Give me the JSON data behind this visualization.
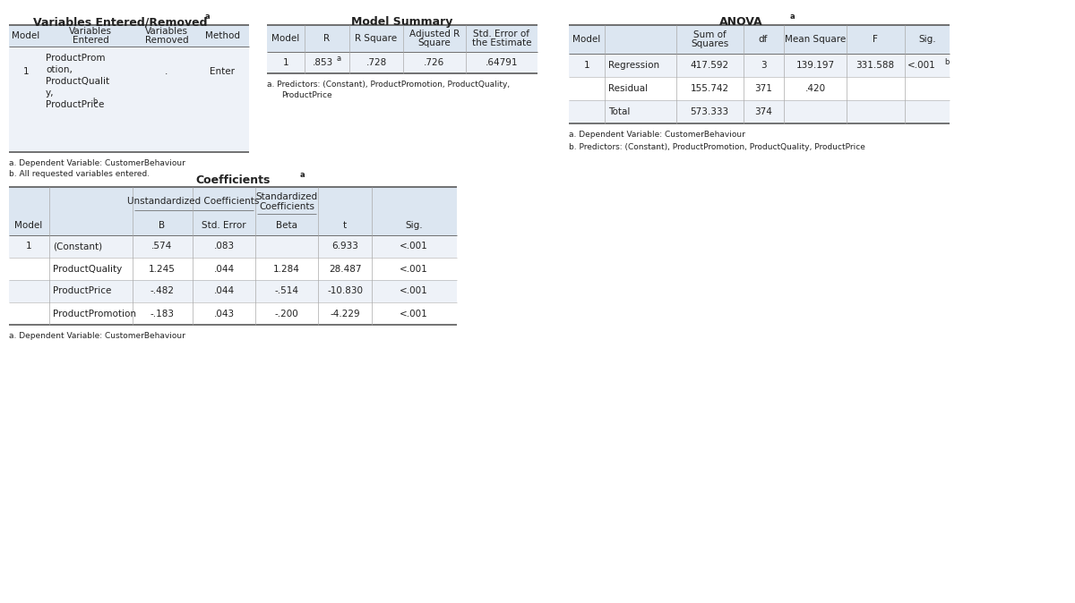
{
  "bg_color": "#ffffff",
  "header_bg": "#dce6f1",
  "row_bg_alt": "#eef2f8",
  "row_bg_white": "#ffffff",
  "font_size": 7.5,
  "header_font_size": 7.5,
  "title_font_size": 9,
  "var_entered_title": "Variables Entered/Removed",
  "var_entered_title_sup": "a",
  "var_table_headers": [
    "Model",
    "Variables\nEntered",
    "Variables\nRemoved",
    "Method"
  ],
  "var_table_data_col0": "1",
  "var_table_data_col1": "ProductProm\notion,\nProductQualit\ny,\nProductPrice",
  "var_table_data_col1_sup": "b",
  "var_table_data_col2": ".",
  "var_table_data_col3": "Enter",
  "var_footnote_a": "a. Dependent Variable: CustomerBehaviour",
  "var_footnote_b": "b. All requested variables entered.",
  "model_summary_title": "Model Summary",
  "model_summary_headers": [
    "Model",
    "R",
    "R Square",
    "Adjusted R\nSquare",
    "Std. Error of\nthe Estimate"
  ],
  "model_summary_r": ".853",
  "model_summary_r_sup": "a",
  "model_summary_vals": [
    ".728",
    ".726",
    ".64791"
  ],
  "model_summary_footnote1": "a. Predictors: (Constant), ProductPromotion, ProductQuality,",
  "model_summary_footnote2": "ProductPrice",
  "anova_title": "ANOVA",
  "anova_title_sup": "a",
  "anova_headers": [
    "Model",
    "",
    "Sum of\nSquares",
    "df",
    "Mean Square",
    "F",
    "Sig."
  ],
  "anova_row1": [
    "1",
    "Regression",
    "417.592",
    "3",
    "139.197",
    "331.588",
    "<.001"
  ],
  "anova_row1_sig_sup": "b",
  "anova_row2": [
    "",
    "Residual",
    "155.742",
    "371",
    ".420",
    "",
    ""
  ],
  "anova_row3": [
    "",
    "Total",
    "573.333",
    "374",
    "",
    "",
    ""
  ],
  "anova_footnote_a": "a. Dependent Variable: CustomerBehaviour",
  "anova_footnote_b": "b. Predictors: (Constant), ProductPromotion, ProductQuality, ProductPrice",
  "coeff_title": "Coefficients",
  "coeff_title_sup": "a",
  "coeff_span1_label": "Unstandardized Coefficients",
  "coeff_span2_label": "Standardized\nCoefficients",
  "coeff_headers_bot": [
    "Model",
    "",
    "B",
    "Std. Error",
    "Beta",
    "t",
    "Sig."
  ],
  "coeff_data": [
    [
      "1",
      "(Constant)",
      ".574",
      ".083",
      "",
      "6.933",
      "<.001"
    ],
    [
      "",
      "ProductQuality",
      "1.245",
      ".044",
      "1.284",
      "28.487",
      "<.001"
    ],
    [
      "",
      "ProductPrice",
      "-.482",
      ".044",
      "-.514",
      "-10.830",
      "<.001"
    ],
    [
      "",
      "ProductPromotion",
      "-.183",
      ".043",
      "-.200",
      "-4.229",
      "<.001"
    ]
  ],
  "coeff_footnote": "a. Dependent Variable: CustomerBehaviour",
  "line_color": "#5a5a5a",
  "light_line": "#aaaaaa",
  "thick_lw": 1.2,
  "thin_lw": 0.6
}
